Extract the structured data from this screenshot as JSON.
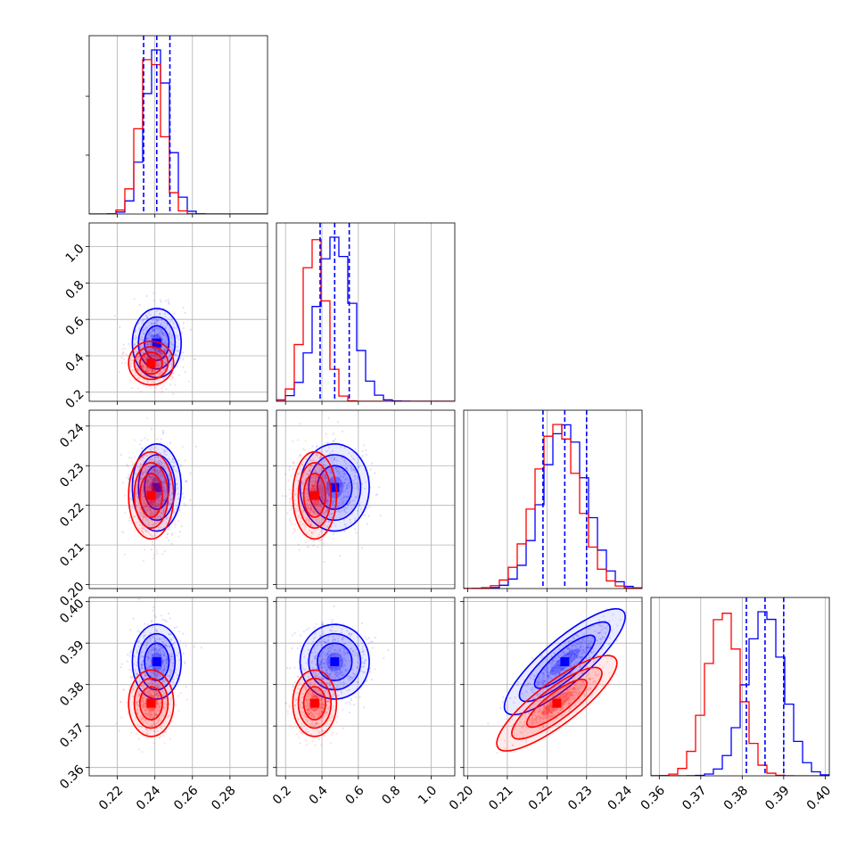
{
  "chart_data": {
    "type": "corner",
    "parameters": [
      "",
      "",
      "",
      ""
    ],
    "ranges": [
      [
        0.205,
        0.3
      ],
      [
        0.15,
        1.13
      ],
      [
        0.199,
        0.244
      ],
      [
        0.358,
        0.401
      ]
    ],
    "ticks": [
      [
        "0.22",
        "0.24",
        "0.26",
        "0.28"
      ],
      [
        "0.2",
        "0.4",
        "0.6",
        "0.8",
        "1.0"
      ],
      [
        "0.20",
        "0.21",
        "0.22",
        "0.23",
        "0.24"
      ],
      [
        "0.36",
        "0.37",
        "0.38",
        "0.39",
        "0.40"
      ]
    ],
    "grid": true,
    "series": [
      {
        "color": "#0000ff",
        "means": [
          0.241,
          0.47,
          0.2245,
          0.3855
        ],
        "sds": [
          0.0065,
          0.095,
          0.0055,
          0.0045
        ],
        "quantiles_16_50_84": [
          [
            0.234,
            0.241,
            0.248
          ],
          [
            0.39,
            0.47,
            0.55
          ],
          [
            0.219,
            0.2245,
            0.23
          ],
          [
            0.381,
            0.3855,
            0.39
          ]
        ]
      },
      {
        "color": "#ff0000",
        "means": [
          0.238,
          0.36,
          0.2225,
          0.3755
        ],
        "sds": [
          0.006,
          0.06,
          0.0055,
          0.004
        ],
        "correlations_with_last": [
          0.0,
          0.0,
          0.85
        ]
      }
    ],
    "quantile_line_color": "#0000ff"
  }
}
